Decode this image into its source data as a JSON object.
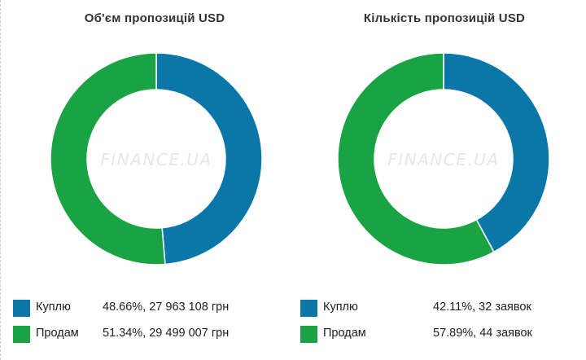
{
  "colors": {
    "buy": "#0a77a8",
    "sell": "#1aa343",
    "watermark": "#e7e7e7"
  },
  "watermark": "FINANCE.UA",
  "chart_data": [
    {
      "type": "pie",
      "title": "Об'єм пропозицій USD",
      "categories": [
        "Куплю",
        "Продам"
      ],
      "values": [
        48.66,
        51.34
      ],
      "value_labels": [
        "48.66%, 27 963 108 грн",
        "51.34%, 29 499 007 грн"
      ]
    },
    {
      "type": "pie",
      "title": "Кількість пропозицій USD",
      "categories": [
        "Куплю",
        "Продам"
      ],
      "values": [
        42.11,
        57.89
      ],
      "value_labels": [
        "42.11%, 32 заявок",
        "57.89%, 44 заявок"
      ]
    }
  ]
}
